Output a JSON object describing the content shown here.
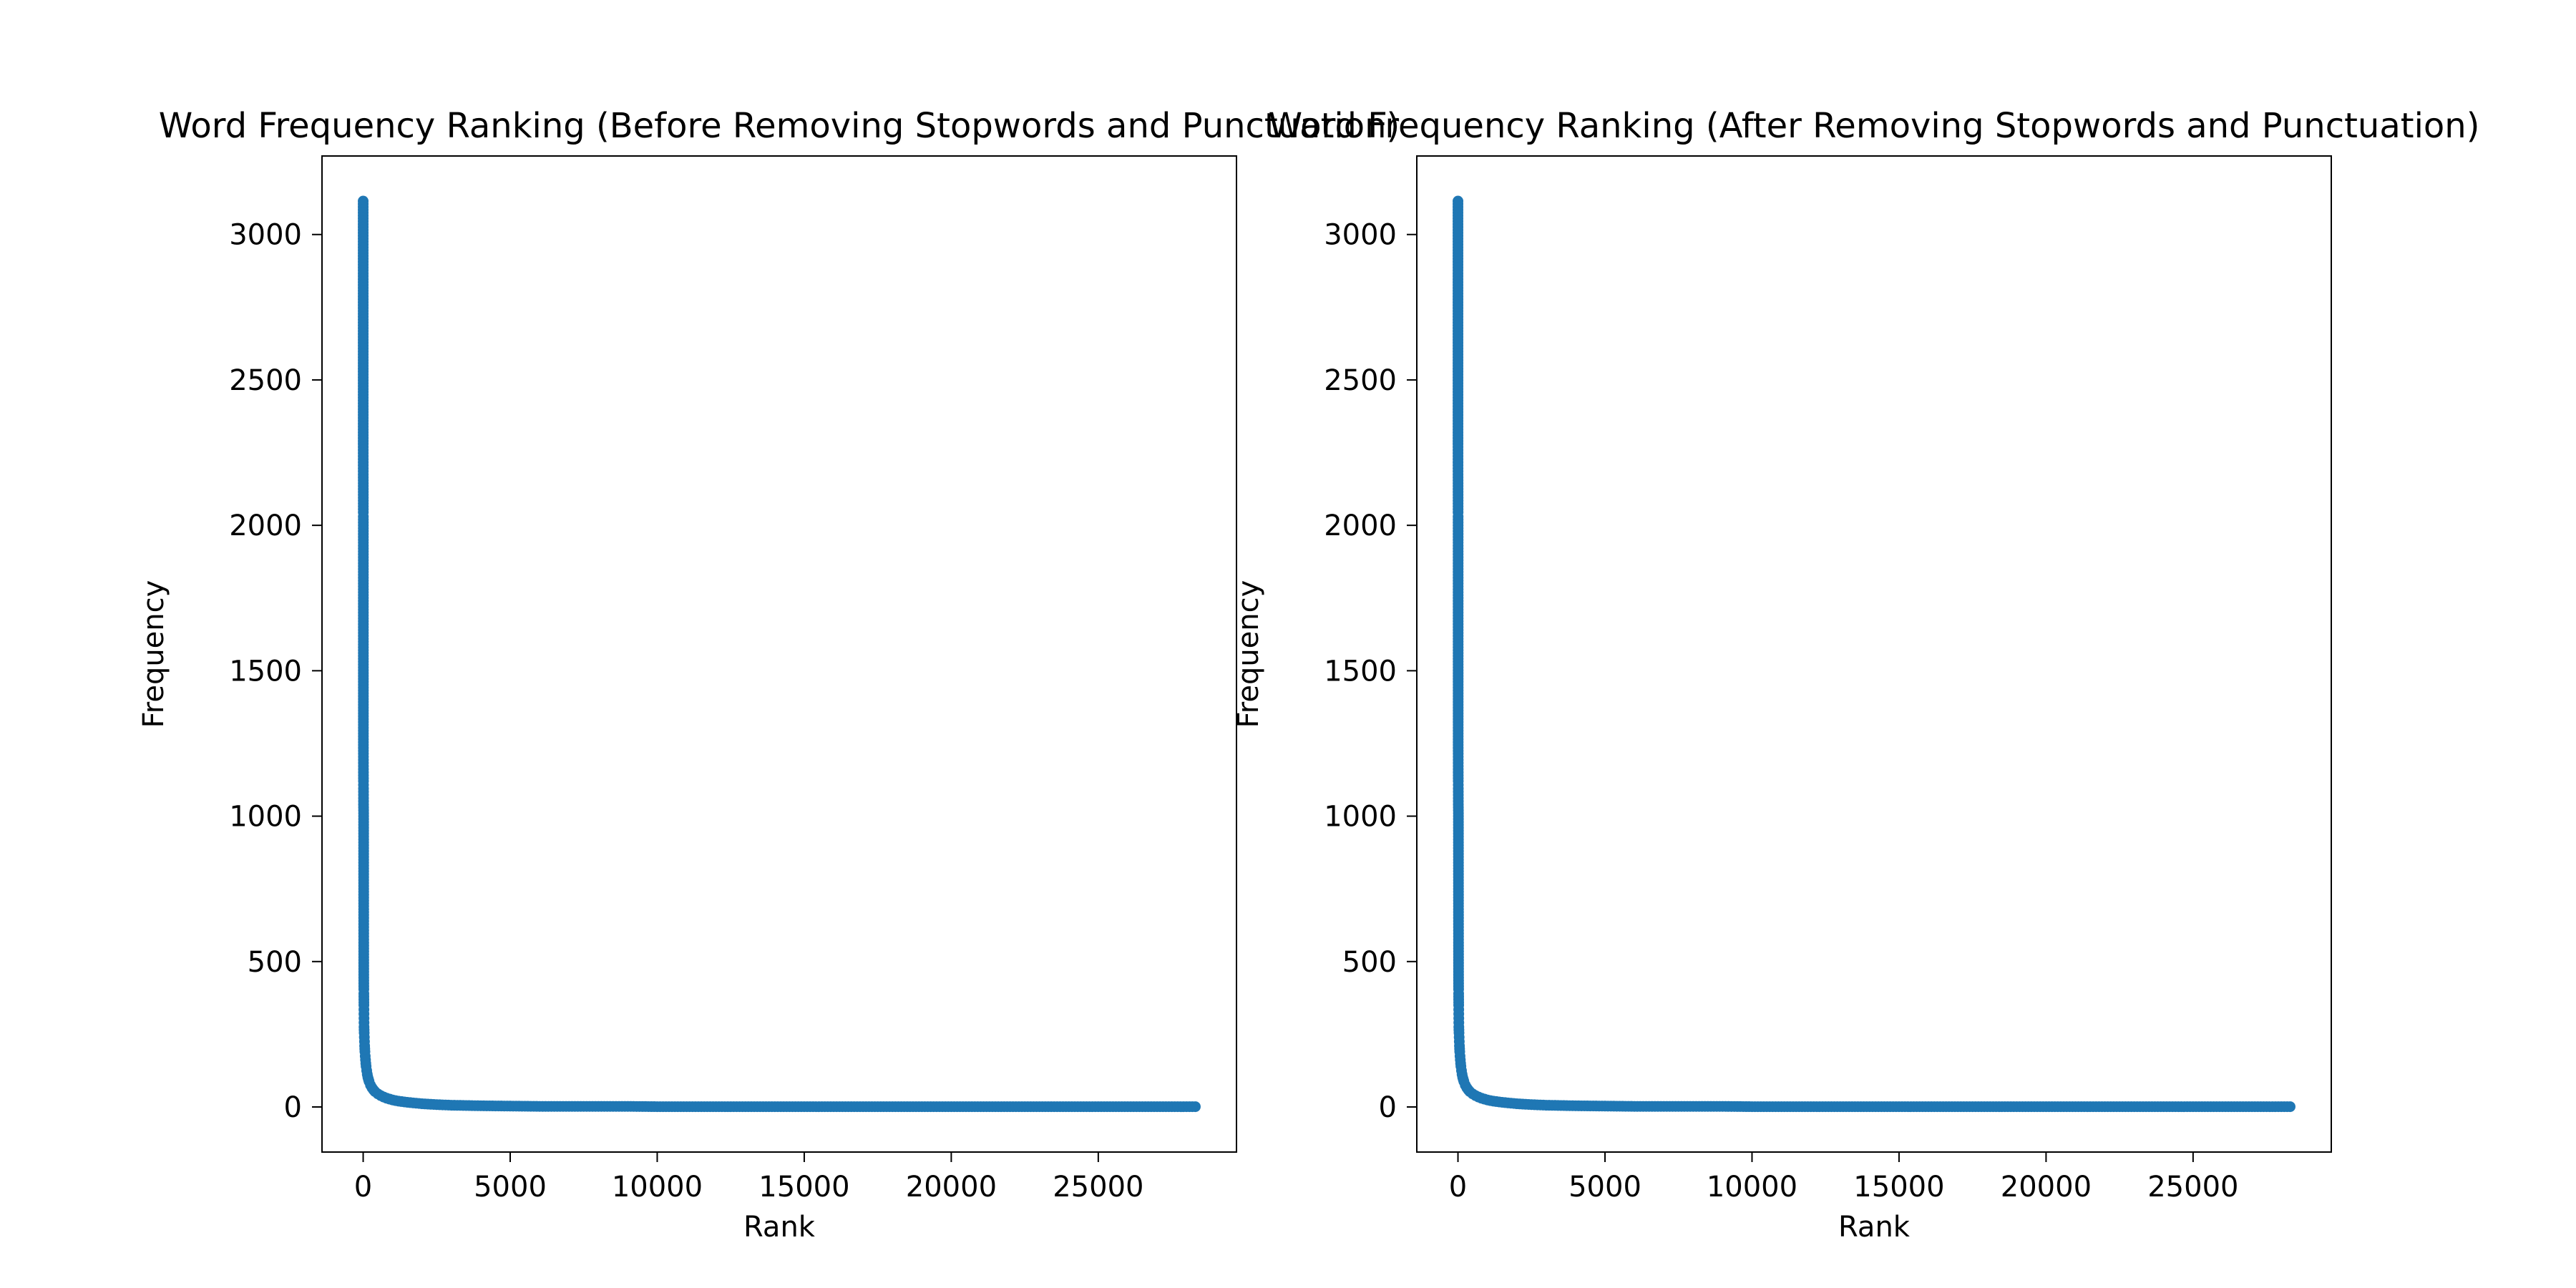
{
  "figure": {
    "background": "#ffffff",
    "marker_color": "#1f77b4"
  },
  "chart_data": [
    {
      "type": "scatter",
      "title": "Word Frequency Ranking (Before Removing Stopwords and Punctuation)",
      "xlabel": "Rank",
      "ylabel": "Frequency",
      "xlim": [
        -1400,
        29700
      ],
      "ylim": [
        -155,
        3270
      ],
      "xticks": [
        0,
        5000,
        10000,
        15000,
        20000,
        25000
      ],
      "yticks": [
        0,
        500,
        1000,
        1500,
        2000,
        2500,
        3000
      ],
      "grid": false,
      "legend": "none",
      "color": "#1f77b4",
      "series": [
        {
          "x": [
            0,
            1,
            2,
            3,
            4,
            5,
            6,
            7,
            8,
            9,
            10,
            11,
            12,
            13,
            14,
            15,
            16,
            17,
            18,
            19,
            20,
            21,
            22,
            23,
            24,
            25,
            26,
            27,
            28,
            29,
            30,
            35,
            40,
            45,
            50,
            60,
            70,
            80,
            90,
            100,
            120,
            140,
            160,
            180,
            200,
            250,
            300,
            350,
            400,
            500,
            600,
            700,
            800,
            1000,
            1200,
            1500,
            1800,
            2000,
            2500,
            3000,
            3500,
            4000,
            5000,
            6000,
            7000,
            8000,
            9000,
            10000,
            12000,
            14000,
            16000,
            18000,
            20000,
            22000,
            24000,
            26000,
            28300
          ],
          "y": [
            3115,
            2280,
            2175,
            2145,
            2045,
            2030,
            1600,
            1235,
            1215,
            1140,
            1120,
            1095,
            1040,
            1030,
            1020,
            1010,
            880,
            750,
            650,
            565,
            455,
            425,
            405,
            390,
            370,
            350,
            335,
            320,
            305,
            290,
            275,
            255,
            240,
            225,
            210,
            190,
            175,
            162,
            150,
            140,
            125,
            112,
            102,
            95,
            88,
            75,
            66,
            59,
            53,
            45,
            39,
            34,
            30,
            24,
            20,
            16,
            13,
            11,
            8,
            6,
            5,
            4,
            3,
            2,
            2,
            2,
            2,
            1,
            1,
            1,
            1,
            1,
            1,
            1,
            1,
            1,
            1
          ]
        }
      ]
    },
    {
      "type": "scatter",
      "title": "Word Frequency Ranking (After Removing Stopwords and Punctuation)",
      "xlabel": "Rank",
      "ylabel": "Frequency",
      "xlim": [
        -1400,
        29700
      ],
      "ylim": [
        -155,
        3270
      ],
      "xticks": [
        0,
        5000,
        10000,
        15000,
        20000,
        25000
      ],
      "yticks": [
        0,
        500,
        1000,
        1500,
        2000,
        2500,
        3000
      ],
      "grid": false,
      "legend": "none",
      "color": "#1f77b4",
      "series": [
        {
          "x": [
            0,
            1,
            2,
            3,
            4,
            5,
            6,
            7,
            8,
            9,
            10,
            11,
            12,
            13,
            14,
            15,
            16,
            17,
            18,
            19,
            20,
            21,
            22,
            23,
            24,
            25,
            26,
            27,
            28,
            29,
            30,
            35,
            40,
            45,
            50,
            60,
            70,
            80,
            90,
            100,
            120,
            140,
            160,
            180,
            200,
            250,
            300,
            350,
            400,
            500,
            600,
            700,
            800,
            1000,
            1200,
            1500,
            1800,
            2000,
            2500,
            3000,
            3500,
            4000,
            5000,
            6000,
            7000,
            8000,
            9000,
            10000,
            12000,
            14000,
            16000,
            18000,
            20000,
            22000,
            24000,
            26000,
            28300
          ],
          "y": [
            3115,
            2280,
            2175,
            2145,
            2045,
            2030,
            1600,
            1235,
            1215,
            1140,
            1120,
            1095,
            1040,
            1030,
            1020,
            1010,
            880,
            750,
            650,
            565,
            455,
            425,
            405,
            390,
            370,
            350,
            335,
            320,
            305,
            290,
            275,
            255,
            240,
            225,
            210,
            190,
            175,
            162,
            150,
            140,
            125,
            112,
            102,
            95,
            88,
            75,
            66,
            59,
            53,
            45,
            39,
            34,
            30,
            24,
            20,
            16,
            13,
            11,
            8,
            6,
            5,
            4,
            3,
            2,
            2,
            2,
            2,
            1,
            1,
            1,
            1,
            1,
            1,
            1,
            1,
            1,
            1
          ]
        }
      ]
    }
  ]
}
